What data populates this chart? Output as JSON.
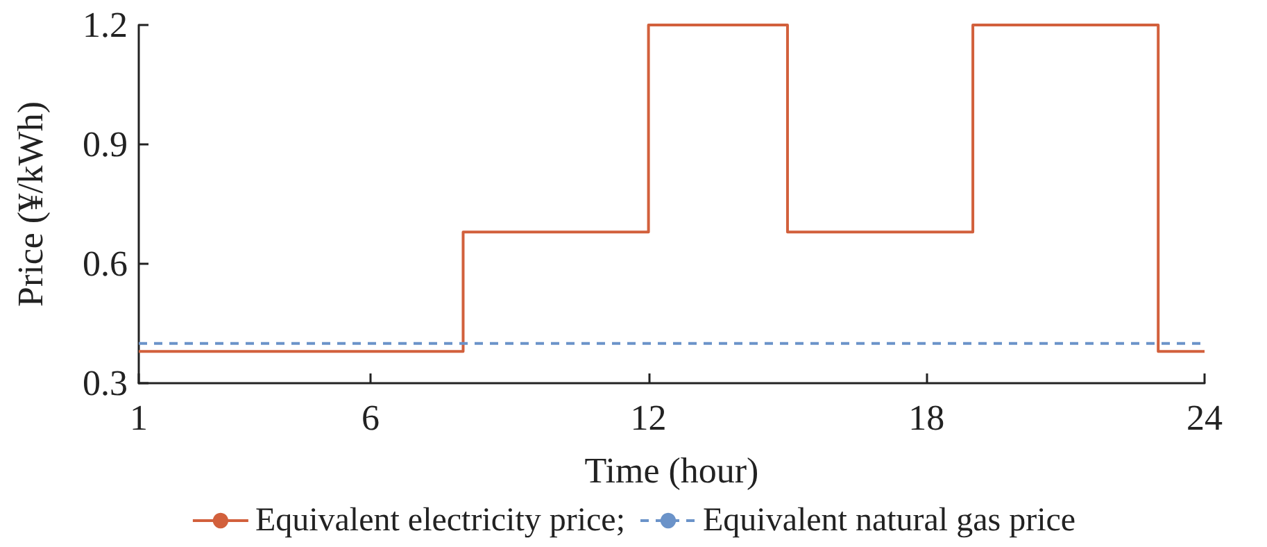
{
  "chart_data": {
    "type": "step",
    "xlabel": "Time (hour)",
    "ylabel": "Price (¥/kWh)",
    "xlim": [
      1,
      24
    ],
    "xticks": [
      1,
      6,
      12,
      18,
      24
    ],
    "ylim": [
      0.3,
      1.2
    ],
    "yticks": [
      0.3,
      0.6,
      0.9,
      1.2
    ],
    "grid": false,
    "legend": "bottom",
    "marker": "none",
    "series": [
      {
        "name": "Equivalent electricity price;",
        "color": "#d2603c",
        "x": [
          1,
          8,
          12,
          15,
          19,
          23,
          24
        ],
        "values": [
          0.38,
          0.68,
          1.2,
          0.68,
          1.2,
          0.38,
          0.38
        ],
        "line_style": "solid"
      },
      {
        "name": "Equivalent natural gas price",
        "type": "line",
        "color": "#6b93c9",
        "x": [
          1,
          24
        ],
        "values": [
          0.4,
          0.4
        ],
        "line_style": "dashed"
      }
    ]
  }
}
